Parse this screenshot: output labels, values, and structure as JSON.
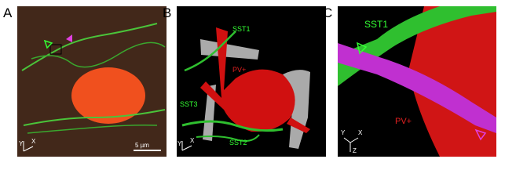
{
  "panels": [
    {
      "label": "A",
      "scale_bar": "5 µm",
      "axes": [
        "Y",
        "X"
      ]
    },
    {
      "label": "B",
      "annotations": [
        "SST1",
        "PV+",
        "SST3",
        "SST2"
      ],
      "axes": [
        "Y",
        "X"
      ]
    },
    {
      "label": "C",
      "annotations": [
        "SST1",
        "PV+"
      ],
      "axes": [
        "Y",
        "X",
        "Z"
      ]
    }
  ]
}
